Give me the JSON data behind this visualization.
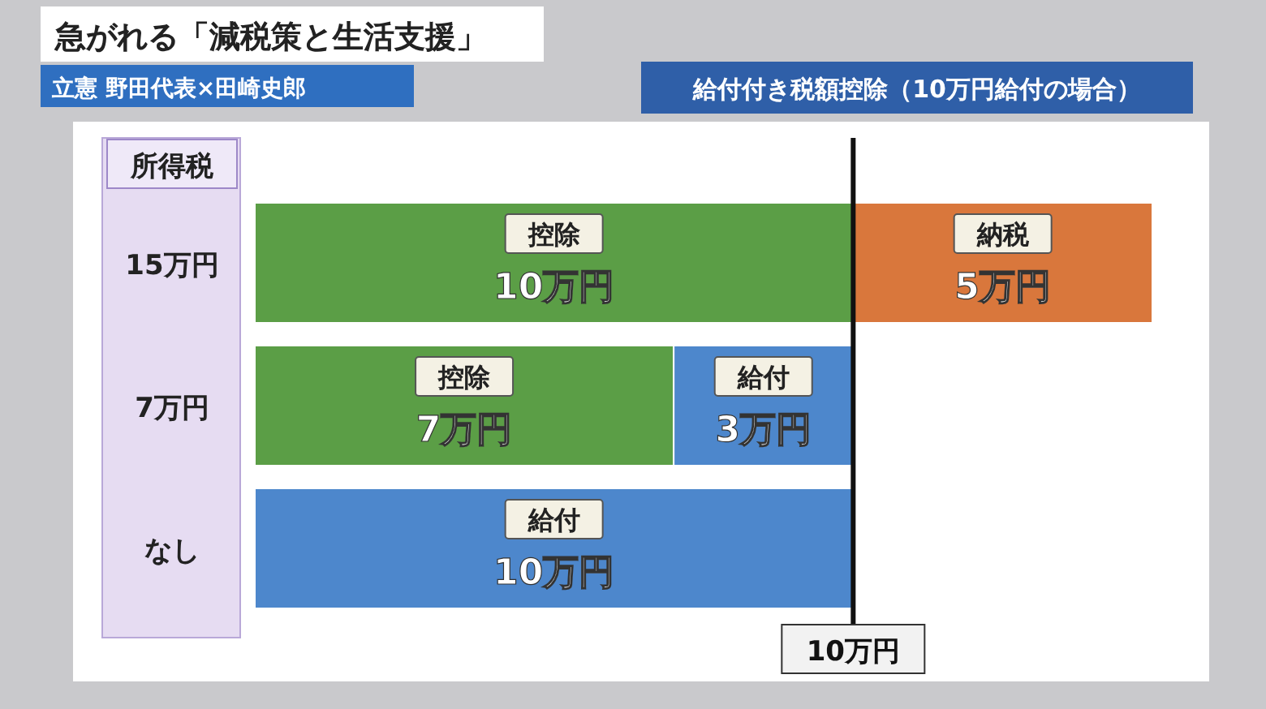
{
  "chart_data": {
    "type": "bar",
    "orientation": "horizontal",
    "stacked": true,
    "title": "急がれる「減税策と生活支援」",
    "subtitle": "立憲 野田代表×田崎史郎",
    "annotations": [
      "給付付き税額控除（10万円給付の場合）"
    ],
    "ylabel": "所得税",
    "categories": [
      "15万円",
      "7万円",
      "なし"
    ],
    "series": [
      {
        "name": "控除",
        "color": "#5b9e46",
        "values": [
          10,
          7,
          null
        ],
        "value_labels": [
          "10万円",
          "7万円",
          null
        ]
      },
      {
        "name": "給付",
        "color": "#4d87cc",
        "values": [
          null,
          3,
          10
        ],
        "value_labels": [
          null,
          "3万円",
          "10万円"
        ]
      },
      {
        "name": "納税",
        "color": "#d9773c",
        "values": [
          5,
          null,
          null
        ],
        "value_labels": [
          "5万円",
          null,
          null
        ]
      }
    ],
    "ref_lines": [
      {
        "axis": "x",
        "value": 10,
        "label": "10万円",
        "color": "#111111"
      }
    ]
  }
}
